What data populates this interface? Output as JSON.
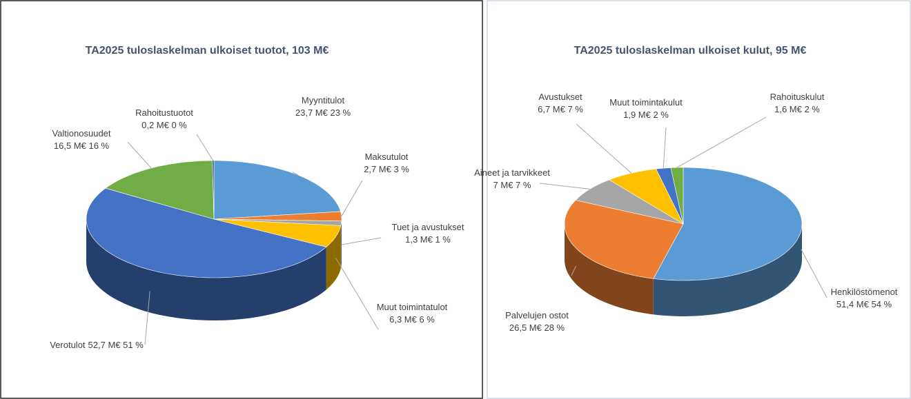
{
  "chart_data": [
    {
      "type": "pie3d",
      "title": "TA2025 tuloslaskelman ulkoiset tuotot, 103 M€",
      "categories": [
        "Myyntitulot",
        "Maksutulot",
        "Tuet ja avustukset",
        "Muut toimintatulot",
        "Verotulot",
        "Valtionosuudet",
        "Rahoitustuotot"
      ],
      "values": [
        23.7,
        2.7,
        1.3,
        6.3,
        52.7,
        16.5,
        0.2
      ],
      "value_labels": [
        "23,7 M€ 23 %",
        "2,7 M€ 3 %",
        "1,3 M€ 1 %",
        "6,3 M€ 6 %",
        "52,7 M€ 51 %",
        "16,5 M€ 16 %",
        "0,2 M€ 0 %"
      ],
      "colors": [
        "#5b9bd5",
        "#ed7d31",
        "#a5a5a5",
        "#ffc000",
        "#4472c4",
        "#70ad47",
        "#264478"
      ]
    },
    {
      "type": "pie3d",
      "title": "TA2025 tuloslaskelman ulkoiset kulut, 95 M€",
      "categories": [
        "Henkilöstömenot",
        "Palvelujen ostot",
        "Aineet ja tarvikkeet",
        "Avustukset",
        "Muut toimintakulut",
        "Rahoituskulut"
      ],
      "values": [
        51.4,
        26.5,
        7,
        6.7,
        1.9,
        1.6
      ],
      "value_labels": [
        "51,4 M€ 54 %",
        "26,5 M€ 28 %",
        "7 M€ 7 %",
        "6,7 M€ 7 %",
        "1,9 M€ 2 %",
        "1,6 M€ 2 %"
      ],
      "colors": [
        "#5b9bd5",
        "#ed7d31",
        "#a5a5a5",
        "#ffc000",
        "#4472c4",
        "#70ad47"
      ]
    }
  ]
}
